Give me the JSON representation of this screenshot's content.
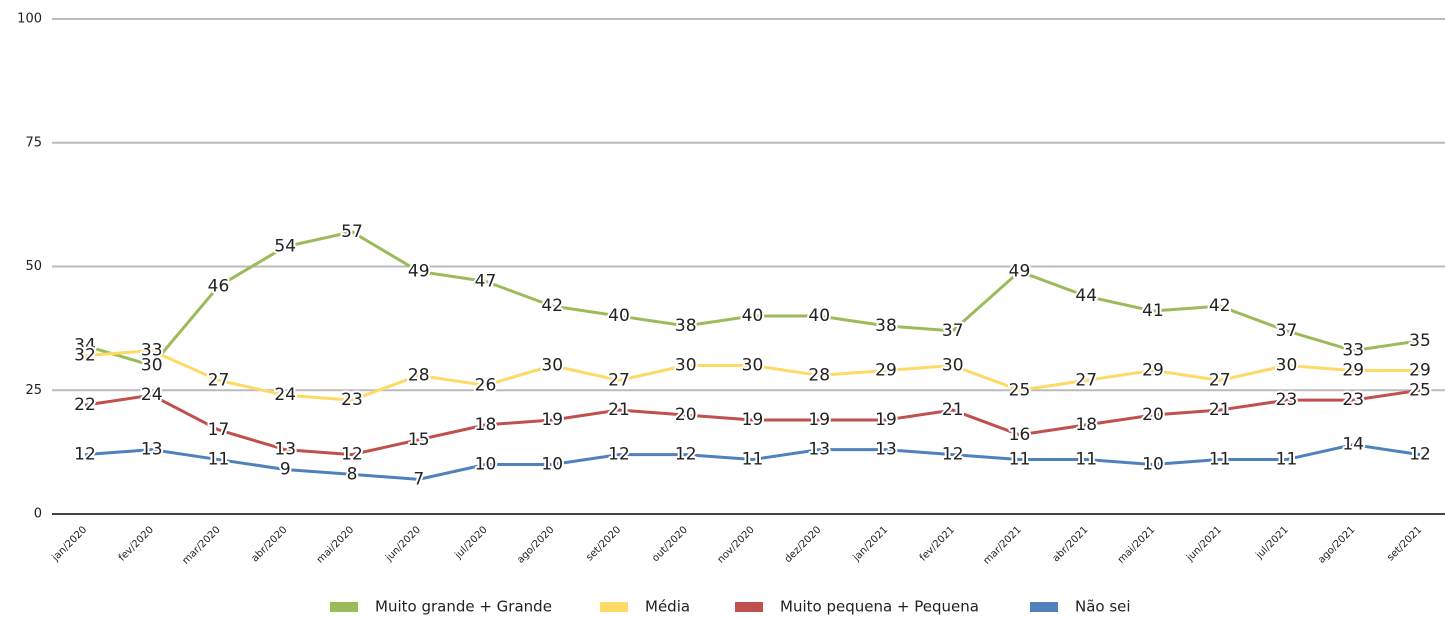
{
  "chart_data": {
    "type": "line",
    "categories": [
      "jan/2020",
      "fev/2020",
      "mar/2020",
      "abr/2020",
      "mai/2020",
      "jun/2020",
      "jul/2020",
      "ago/2020",
      "set/2020",
      "out/2020",
      "nov/2020",
      "dez/2020",
      "jan/2021",
      "fev/2021",
      "mar/2021",
      "abr/2021",
      "mai/2021",
      "jun/2021",
      "jul/2021",
      "ago/2021",
      "set/2021"
    ],
    "series": [
      {
        "name": "Muito grande + Grande",
        "color": "#9bbb59",
        "values": [
          34,
          30,
          46,
          54,
          57,
          49,
          47,
          42,
          40,
          38,
          40,
          40,
          38,
          37,
          49,
          44,
          41,
          42,
          37,
          33,
          35
        ]
      },
      {
        "name": "Média",
        "color": "#ffd966",
        "values": [
          32,
          33,
          27,
          24,
          23,
          28,
          26,
          30,
          27,
          30,
          30,
          28,
          29,
          30,
          25,
          27,
          29,
          27,
          30,
          29,
          29
        ]
      },
      {
        "name": "Muito pequena + Pequena",
        "color": "#c0504d",
        "values": [
          22,
          24,
          17,
          13,
          12,
          15,
          18,
          19,
          21,
          20,
          19,
          19,
          19,
          21,
          16,
          18,
          20,
          21,
          23,
          23,
          25
        ]
      },
      {
        "name": "Não sei",
        "color": "#4f81bd",
        "values": [
          12,
          13,
          11,
          9,
          8,
          7,
          10,
          10,
          12,
          12,
          11,
          13,
          13,
          12,
          11,
          11,
          10,
          11,
          11,
          14,
          12
        ]
      }
    ],
    "ylim": [
      0,
      100
    ],
    "yticks": [
      0,
      25,
      50,
      75,
      100
    ],
    "grid": true
  }
}
